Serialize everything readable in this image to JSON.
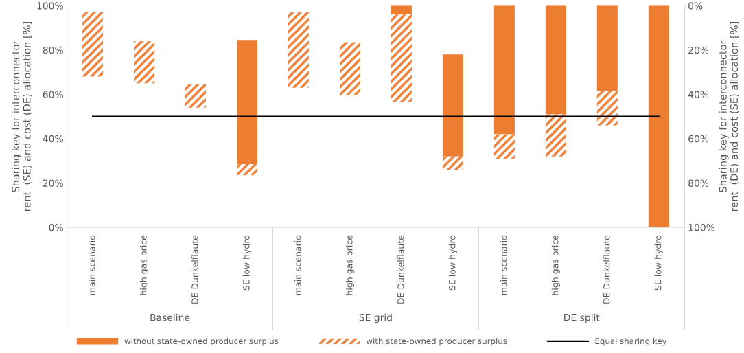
{
  "chart_data": {
    "type": "bar",
    "ylabel": "Sharing key for interconnector\nrent  (SE) and cost (DE) allocation [%]",
    "y2label": "Sharing key for interconnector\nrent  (DE) and cost (SE) allocation [%]",
    "categories": [
      "main scenario",
      "high gas price",
      "DE Dunkelflaute",
      "SE low hydro",
      "main scenario",
      "high gas price",
      "DE Dunkelflaute",
      "SE low hydro",
      "main scenario",
      "high gas price",
      "DE Dunkelflaute",
      "SE low hydro"
    ],
    "annotations": [
      "Baseline",
      "SE grid",
      "DE split"
    ],
    "series": [
      {
        "name": "without state-owned producer surplus",
        "color": "#ed7d31",
        "base": [
          null,
          null,
          null,
          28.5,
          null,
          null,
          96,
          32,
          42,
          51,
          61.5,
          0
        ],
        "values": [
          null,
          null,
          null,
          56,
          null,
          null,
          4,
          46,
          58,
          49,
          38.5,
          100
        ]
      },
      {
        "name": "with state-owned producer surplus",
        "color": "#ed7d31",
        "base": [
          68,
          65,
          54,
          23.5,
          63,
          59.5,
          56.5,
          26,
          31,
          32,
          46,
          null
        ],
        "values": [
          29,
          19,
          10.5,
          5,
          34,
          24,
          39.5,
          6,
          11,
          19,
          15.5,
          null
        ]
      },
      {
        "name": "Equal sharing key",
        "type": "line",
        "color": "#000000",
        "values": [
          50,
          50,
          50,
          50,
          50,
          50,
          50,
          50,
          50,
          50,
          50,
          50
        ]
      }
    ],
    "ylim": [
      0,
      100
    ],
    "yticks": [
      {
        "value": 0,
        "label": "0%"
      },
      {
        "value": 20,
        "label": "20%"
      },
      {
        "value": 40,
        "label": "40%"
      },
      {
        "value": 60,
        "label": "60%"
      },
      {
        "value": 80,
        "label": "80%"
      },
      {
        "value": 100,
        "label": "100%"
      }
    ],
    "y2lim": [
      100,
      0
    ],
    "y2ticks": [
      {
        "value": 0,
        "label": "0%"
      },
      {
        "value": 20,
        "label": "20%"
      },
      {
        "value": 40,
        "label": "40%"
      },
      {
        "value": 60,
        "label": "60%"
      },
      {
        "value": 80,
        "label": "80%"
      },
      {
        "value": 100,
        "label": "100%"
      }
    ],
    "grid": false,
    "legend": "bottom",
    "marker": "none"
  }
}
